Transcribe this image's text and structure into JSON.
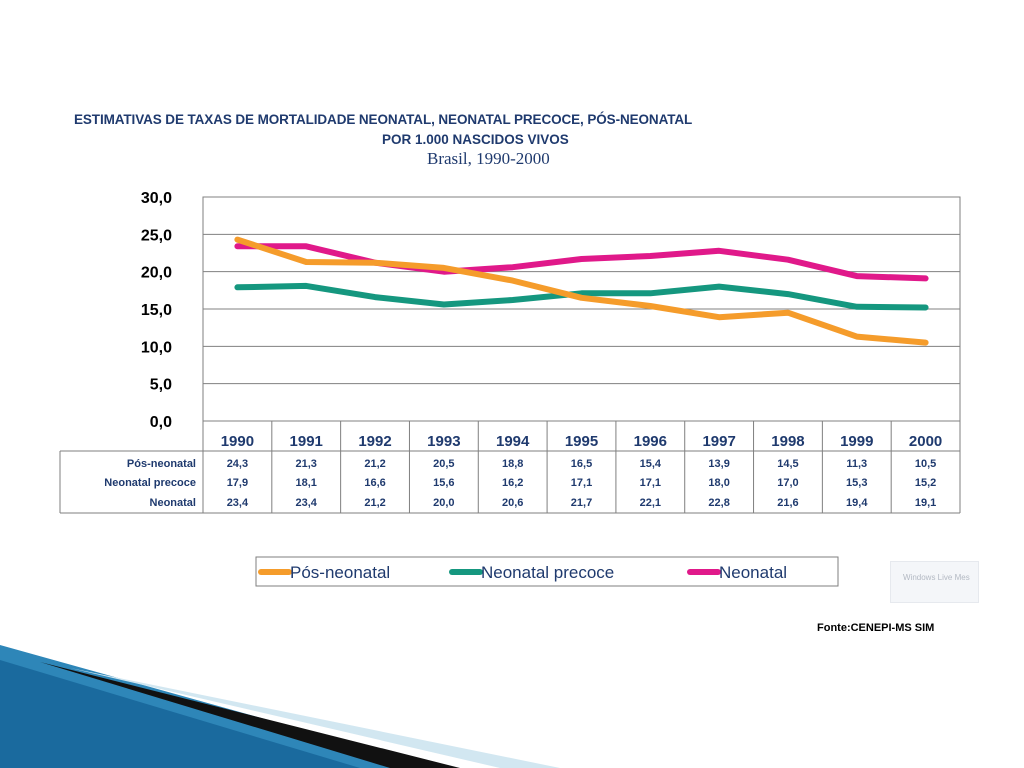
{
  "titles": {
    "line1": "ESTIMATIVAS DE TAXAS DE MORTALIDADE NEONATAL, NEONATAL PRECOCE,  PÓS-NEONATAL",
    "line2": "POR 1.000 NASCIDOS VIVOS",
    "line3": "Brasil, 1990-2000"
  },
  "source": "Fonte:CENEPI-MS SIM",
  "popup_text": "Windows Live Mes",
  "chart_data": {
    "type": "line",
    "x": [
      "1990",
      "1991",
      "1992",
      "1993",
      "1994",
      "1995",
      "1996",
      "1997",
      "1998",
      "1999",
      "2000"
    ],
    "ylim": [
      0,
      30
    ],
    "yticks": [
      "0,0",
      "5,0",
      "10,0",
      "15,0",
      "20,0",
      "25,0",
      "30,0"
    ],
    "grid": true,
    "legend_position": "bottom",
    "series": [
      {
        "name": "Pós-neonatal",
        "color": "#f59c2b",
        "values": [
          24.3,
          21.3,
          21.2,
          20.5,
          18.8,
          16.5,
          15.4,
          13.9,
          14.5,
          11.3,
          10.5
        ],
        "labels": [
          "24,3",
          "21,3",
          "21,2",
          "20,5",
          "18,8",
          "16,5",
          "15,4",
          "13,9",
          "14,5",
          "11,3",
          "10,5"
        ]
      },
      {
        "name": "Neonatal precoce",
        "color": "#15977f",
        "values": [
          17.9,
          18.1,
          16.6,
          15.6,
          16.2,
          17.1,
          17.1,
          18.0,
          17.0,
          15.3,
          15.2
        ],
        "labels": [
          "17,9",
          "18,1",
          "16,6",
          "15,6",
          "16,2",
          "17,1",
          "17,1",
          "18,0",
          "17,0",
          "15,3",
          "15,2"
        ]
      },
      {
        "name": "Neonatal",
        "color": "#e0198a",
        "values": [
          23.4,
          23.4,
          21.2,
          20.0,
          20.6,
          21.7,
          22.1,
          22.8,
          21.6,
          19.4,
          19.1
        ],
        "labels": [
          "23,4",
          "23,4",
          "21,2",
          "20,0",
          "20,6",
          "21,7",
          "22,1",
          "22,8",
          "21,6",
          "19,4",
          "19,1"
        ]
      }
    ]
  }
}
